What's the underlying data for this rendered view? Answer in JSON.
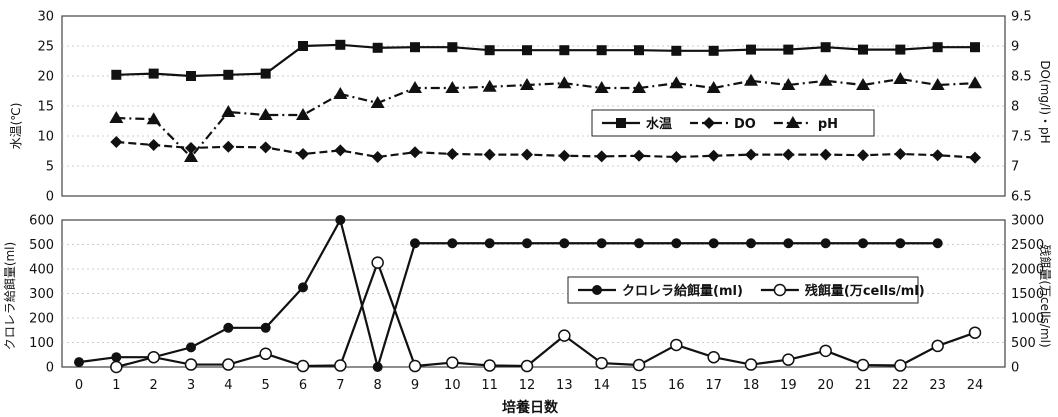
{
  "chart_data": [
    {
      "type": "line",
      "ylabel": "水温(℃)",
      "y2label": "DO(mg/l)・pH",
      "ylim": [
        0,
        30
      ],
      "y_ticks": [
        "0",
        "5",
        "10",
        "15",
        "20",
        "25",
        "30"
      ],
      "y2lim": [
        6.5,
        9.5
      ],
      "y2_ticks": [
        "6.5",
        "7",
        "7.5",
        "8",
        "8.5",
        "9",
        "9.5"
      ],
      "x": [
        0,
        1,
        2,
        3,
        4,
        5,
        6,
        7,
        8,
        9,
        10,
        11,
        12,
        13,
        14,
        15,
        16,
        17,
        18,
        19,
        20,
        21,
        22,
        23,
        24
      ],
      "grid": true,
      "legend_position": "right",
      "series": [
        {
          "name": "水温",
          "axis": "left",
          "marker": "square",
          "line": "solid",
          "x": [
            1,
            2,
            3,
            4,
            5,
            6,
            7,
            8,
            9,
            10,
            11,
            12,
            13,
            14,
            15,
            16,
            17,
            18,
            19,
            20,
            21,
            22,
            23,
            24
          ],
          "values": [
            20.2,
            20.4,
            20.0,
            20.2,
            20.4,
            25.0,
            25.2,
            24.7,
            24.8,
            24.8,
            24.3,
            24.3,
            24.3,
            24.3,
            24.3,
            24.2,
            24.2,
            24.4,
            24.4,
            24.8,
            24.4,
            24.4,
            24.8,
            24.8
          ]
        },
        {
          "name": "DO",
          "axis": "right",
          "marker": "diamond",
          "line": "dashed",
          "x": [
            1,
            2,
            3,
            4,
            5,
            6,
            7,
            8,
            9,
            10,
            11,
            12,
            13,
            14,
            15,
            16,
            17,
            18,
            19,
            20,
            21,
            22,
            23,
            24
          ],
          "values": [
            7.4,
            7.35,
            7.3,
            7.32,
            7.31,
            7.2,
            7.26,
            7.15,
            7.23,
            7.2,
            7.19,
            7.19,
            7.17,
            7.16,
            7.17,
            7.15,
            7.17,
            7.19,
            7.19,
            7.19,
            7.18,
            7.2,
            7.18,
            7.14
          ]
        },
        {
          "name": "pH",
          "axis": "right",
          "marker": "triangle",
          "line": "dash-dot",
          "x": [
            1,
            2,
            3,
            4,
            5,
            6,
            7,
            8,
            9,
            10,
            11,
            12,
            13,
            14,
            15,
            16,
            17,
            18,
            19,
            20,
            21,
            22,
            23,
            24
          ],
          "values": [
            7.8,
            7.78,
            7.15,
            7.9,
            7.85,
            7.85,
            8.2,
            8.05,
            8.3,
            8.3,
            8.32,
            8.35,
            8.38,
            8.3,
            8.3,
            8.38,
            8.3,
            8.42,
            8.35,
            8.42,
            8.35,
            8.45,
            8.35,
            8.38
          ]
        }
      ]
    },
    {
      "type": "line",
      "xlabel": "培養日数",
      "ylabel": "クロレラ給餌量(ml)",
      "y2label": "残餌量(万cells/ml)",
      "ylim": [
        0,
        600
      ],
      "y_ticks": [
        "0",
        "100",
        "200",
        "300",
        "400",
        "500",
        "600"
      ],
      "y2lim": [
        0,
        3000
      ],
      "y2_ticks": [
        "0",
        "500",
        "1000",
        "1500",
        "2000",
        "2500",
        "3000"
      ],
      "x": [
        0,
        1,
        2,
        3,
        4,
        5,
        6,
        7,
        8,
        9,
        10,
        11,
        12,
        13,
        14,
        15,
        16,
        17,
        18,
        19,
        20,
        21,
        22,
        23,
        24
      ],
      "x_ticks": [
        "0",
        "1",
        "2",
        "3",
        "4",
        "5",
        "6",
        "7",
        "8",
        "9",
        "10",
        "11",
        "12",
        "13",
        "14",
        "15",
        "16",
        "17",
        "18",
        "19",
        "20",
        "21",
        "22",
        "23",
        "24"
      ],
      "grid": true,
      "legend_position": "right",
      "series": [
        {
          "name": "クロレラ給餌量(ml)",
          "axis": "left",
          "marker": "filled-circle",
          "line": "solid",
          "x": [
            0,
            1,
            2,
            3,
            4,
            5,
            6,
            7,
            8,
            9,
            10,
            11,
            12,
            13,
            14,
            15,
            16,
            17,
            18,
            19,
            20,
            21,
            22,
            23
          ],
          "values": [
            20,
            40,
            40,
            80,
            160,
            160,
            325,
            600,
            0,
            505,
            505,
            505,
            505,
            505,
            505,
            505,
            505,
            505,
            505,
            505,
            505,
            505,
            505,
            505
          ]
        },
        {
          "name": "残餌量(万cells/ml)",
          "axis": "right",
          "marker": "open-circle",
          "line": "solid",
          "x": [
            1,
            2,
            3,
            4,
            5,
            6,
            7,
            8,
            9,
            10,
            11,
            12,
            13,
            14,
            15,
            16,
            17,
            18,
            19,
            20,
            21,
            22,
            23,
            24
          ],
          "values": [
            0,
            200,
            50,
            50,
            270,
            20,
            30,
            2130,
            20,
            90,
            30,
            20,
            640,
            80,
            40,
            450,
            200,
            50,
            150,
            330,
            40,
            30,
            430,
            700
          ]
        }
      ]
    }
  ]
}
